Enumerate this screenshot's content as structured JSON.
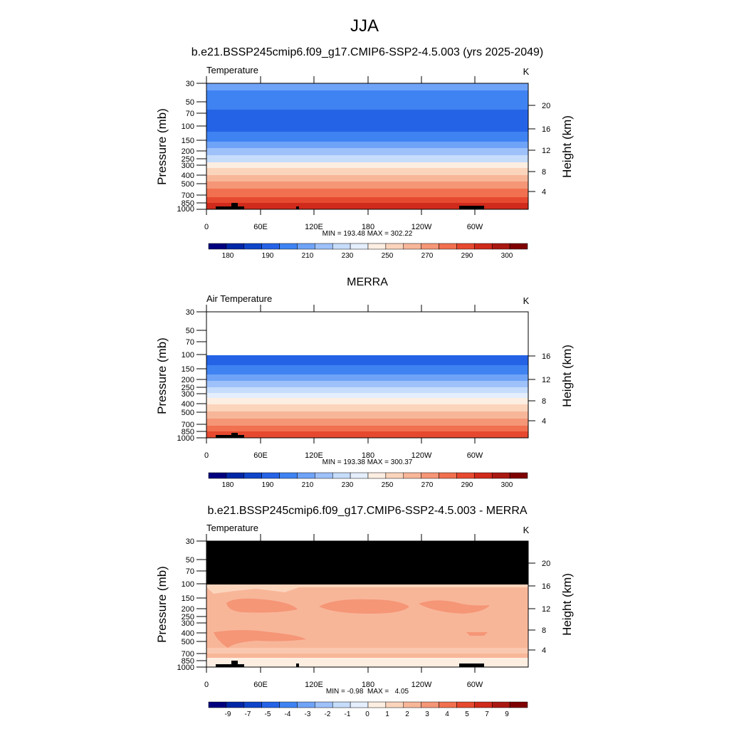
{
  "figure": {
    "title": "JJA"
  },
  "colorbar_colors": [
    "#00007f",
    "#0027a6",
    "#0f45c9",
    "#2563e6",
    "#3f83f2",
    "#6fa3f7",
    "#9ec1fa",
    "#c6dcfb",
    "#e4eefc",
    "#fdeee2",
    "#fbd4bc",
    "#f8b699",
    "#f59677",
    "#f1704f",
    "#e6492f",
    "#cf2a1b",
    "#aa1812",
    "#7f0000"
  ],
  "chart_data": [
    {
      "type": "contour",
      "panel_title": "b.e21.BSSP245cmip6.f09_g17.CMIP6-SSP2-4.5.003 (yrs 2025-2049)",
      "left_label": "Temperature",
      "units": "K",
      "ylabel": "Pressure (mb)",
      "y2label": "Height (km)",
      "y_ticks": [
        "30",
        "50",
        "70",
        "100",
        "150",
        "200",
        "250",
        "300",
        "400",
        "500",
        "700",
        "850",
        "1000"
      ],
      "height_ticks": [
        "20",
        "16",
        "12",
        "8",
        "4"
      ],
      "x_ticks": [
        "0",
        "60E",
        "120E",
        "180",
        "120W",
        "60W"
      ],
      "stats": "MIN = 193.48  MAX = 302.22",
      "colorbar_labels": [
        "180",
        "190",
        "210",
        "230",
        "250",
        "270",
        "290",
        "300"
      ],
      "data_top_mb": 30
    },
    {
      "type": "contour",
      "panel_title": "MERRA",
      "left_label": "Air Temperature",
      "units": "K",
      "ylabel": "Pressure (mb)",
      "y2label": "Height (km)",
      "y_ticks": [
        "30",
        "50",
        "70",
        "100",
        "150",
        "200",
        "250",
        "300",
        "400",
        "500",
        "700",
        "850",
        "1000"
      ],
      "height_ticks": [
        "16",
        "12",
        "8",
        "4"
      ],
      "x_ticks": [
        "0",
        "60E",
        "120E",
        "180",
        "120W",
        "60W"
      ],
      "stats": "MIN = 193.38  MAX = 300.37",
      "colorbar_labels": [
        "180",
        "190",
        "210",
        "230",
        "250",
        "270",
        "290",
        "300"
      ],
      "data_top_mb": 100
    },
    {
      "type": "contour",
      "panel_title": "b.e21.BSSP245cmip6.f09_g17.CMIP6-SSP2-4.5.003 - MERRA",
      "left_label": "Temperature",
      "units": "K",
      "ylabel": "Pressure (mb)",
      "y2label": "Height (km)",
      "y_ticks": [
        "30",
        "50",
        "70",
        "100",
        "150",
        "200",
        "250",
        "300",
        "400",
        "500",
        "700",
        "850",
        "1000"
      ],
      "height_ticks": [
        "20",
        "16",
        "12",
        "8",
        "4"
      ],
      "x_ticks": [
        "0",
        "60E",
        "120E",
        "180",
        "120W",
        "60W"
      ],
      "stats": "MIN = -0.98  MAX =   4.05",
      "colorbar_labels": [
        "-9",
        "-7",
        "-5",
        "-4",
        "-3",
        "-2",
        "-1",
        "0",
        "1",
        "2",
        "3",
        "4",
        "5",
        "7",
        "9"
      ],
      "data_top_mb": 100
    }
  ]
}
